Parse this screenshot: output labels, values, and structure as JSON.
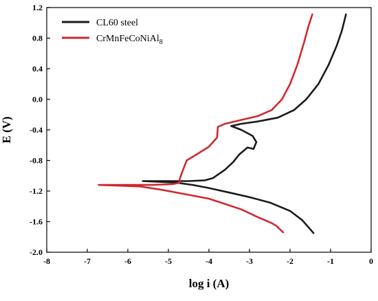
{
  "chart_data": {
    "type": "line",
    "xlabel": "log i (A)",
    "ylabel": "E (V)",
    "xlim": [
      -8,
      0
    ],
    "ylim": [
      -2.0,
      1.2
    ],
    "x_ticks": [
      -8,
      -7,
      -6,
      -5,
      -4,
      -3,
      -2,
      -1,
      0
    ],
    "y_ticks": [
      1.2,
      0.8,
      0.4,
      0.0,
      -0.4,
      -0.8,
      -1.2,
      -1.6,
      -2.0
    ],
    "x_tick_labels": [
      "-8",
      "-7",
      "-6",
      "-5",
      "-4",
      "-3",
      "-2",
      "-1",
      "0"
    ],
    "y_tick_labels": [
      "1.2",
      "0.8",
      "0.4",
      "0.0",
      "-0.4",
      "-0.8",
      "-1.2",
      "-1.6",
      "-2.0"
    ],
    "grid": false,
    "legend_position": "top-left",
    "series": [
      {
        "name": "CL60 steel",
        "color": "#1a1a1a",
        "points": [
          [
            -1.42,
            -1.75
          ],
          [
            -1.7,
            -1.58
          ],
          [
            -2.0,
            -1.46
          ],
          [
            -2.5,
            -1.35
          ],
          [
            -3.0,
            -1.28
          ],
          [
            -3.5,
            -1.22
          ],
          [
            -4.0,
            -1.16
          ],
          [
            -4.4,
            -1.12
          ],
          [
            -4.8,
            -1.09
          ],
          [
            -5.63,
            -1.07
          ],
          [
            -4.5,
            -1.07
          ],
          [
            -4.1,
            -1.06
          ],
          [
            -3.9,
            -1.03
          ],
          [
            -3.6,
            -0.92
          ],
          [
            -3.4,
            -0.82
          ],
          [
            -3.25,
            -0.72
          ],
          [
            -3.05,
            -0.63
          ],
          [
            -2.9,
            -0.65
          ],
          [
            -2.83,
            -0.56
          ],
          [
            -2.92,
            -0.48
          ],
          [
            -3.2,
            -0.4
          ],
          [
            -3.45,
            -0.35
          ],
          [
            -3.2,
            -0.32
          ],
          [
            -2.8,
            -0.29
          ],
          [
            -2.3,
            -0.24
          ],
          [
            -1.9,
            -0.14
          ],
          [
            -1.6,
            0.0
          ],
          [
            -1.3,
            0.2
          ],
          [
            -1.05,
            0.45
          ],
          [
            -0.85,
            0.7
          ],
          [
            -0.72,
            0.9
          ],
          [
            -0.62,
            1.11
          ]
        ]
      },
      {
        "name": "CrMnFeCoNiAl8",
        "name_prefix": "CrMnFeCoNiAl",
        "name_subscript": "8",
        "color": "#d0282e",
        "points": [
          [
            -2.17,
            -1.74
          ],
          [
            -2.35,
            -1.65
          ],
          [
            -2.45,
            -1.62
          ],
          [
            -2.8,
            -1.54
          ],
          [
            -3.2,
            -1.44
          ],
          [
            -3.6,
            -1.37
          ],
          [
            -4.0,
            -1.3
          ],
          [
            -4.6,
            -1.24
          ],
          [
            -5.2,
            -1.18
          ],
          [
            -5.7,
            -1.14
          ],
          [
            -6.72,
            -1.12
          ],
          [
            -5.4,
            -1.12
          ],
          [
            -4.9,
            -1.11
          ],
          [
            -4.72,
            -1.09
          ],
          [
            -4.72,
            -1.04
          ],
          [
            -4.65,
            -0.94
          ],
          [
            -4.55,
            -0.8
          ],
          [
            -4.3,
            -0.72
          ],
          [
            -4.0,
            -0.62
          ],
          [
            -3.8,
            -0.5
          ],
          [
            -3.78,
            -0.36
          ],
          [
            -3.6,
            -0.32
          ],
          [
            -3.2,
            -0.27
          ],
          [
            -2.8,
            -0.22
          ],
          [
            -2.45,
            -0.14
          ],
          [
            -2.2,
            0.0
          ],
          [
            -2.0,
            0.2
          ],
          [
            -1.82,
            0.45
          ],
          [
            -1.65,
            0.75
          ],
          [
            -1.55,
            0.95
          ],
          [
            -1.45,
            1.11
          ]
        ]
      }
    ]
  }
}
